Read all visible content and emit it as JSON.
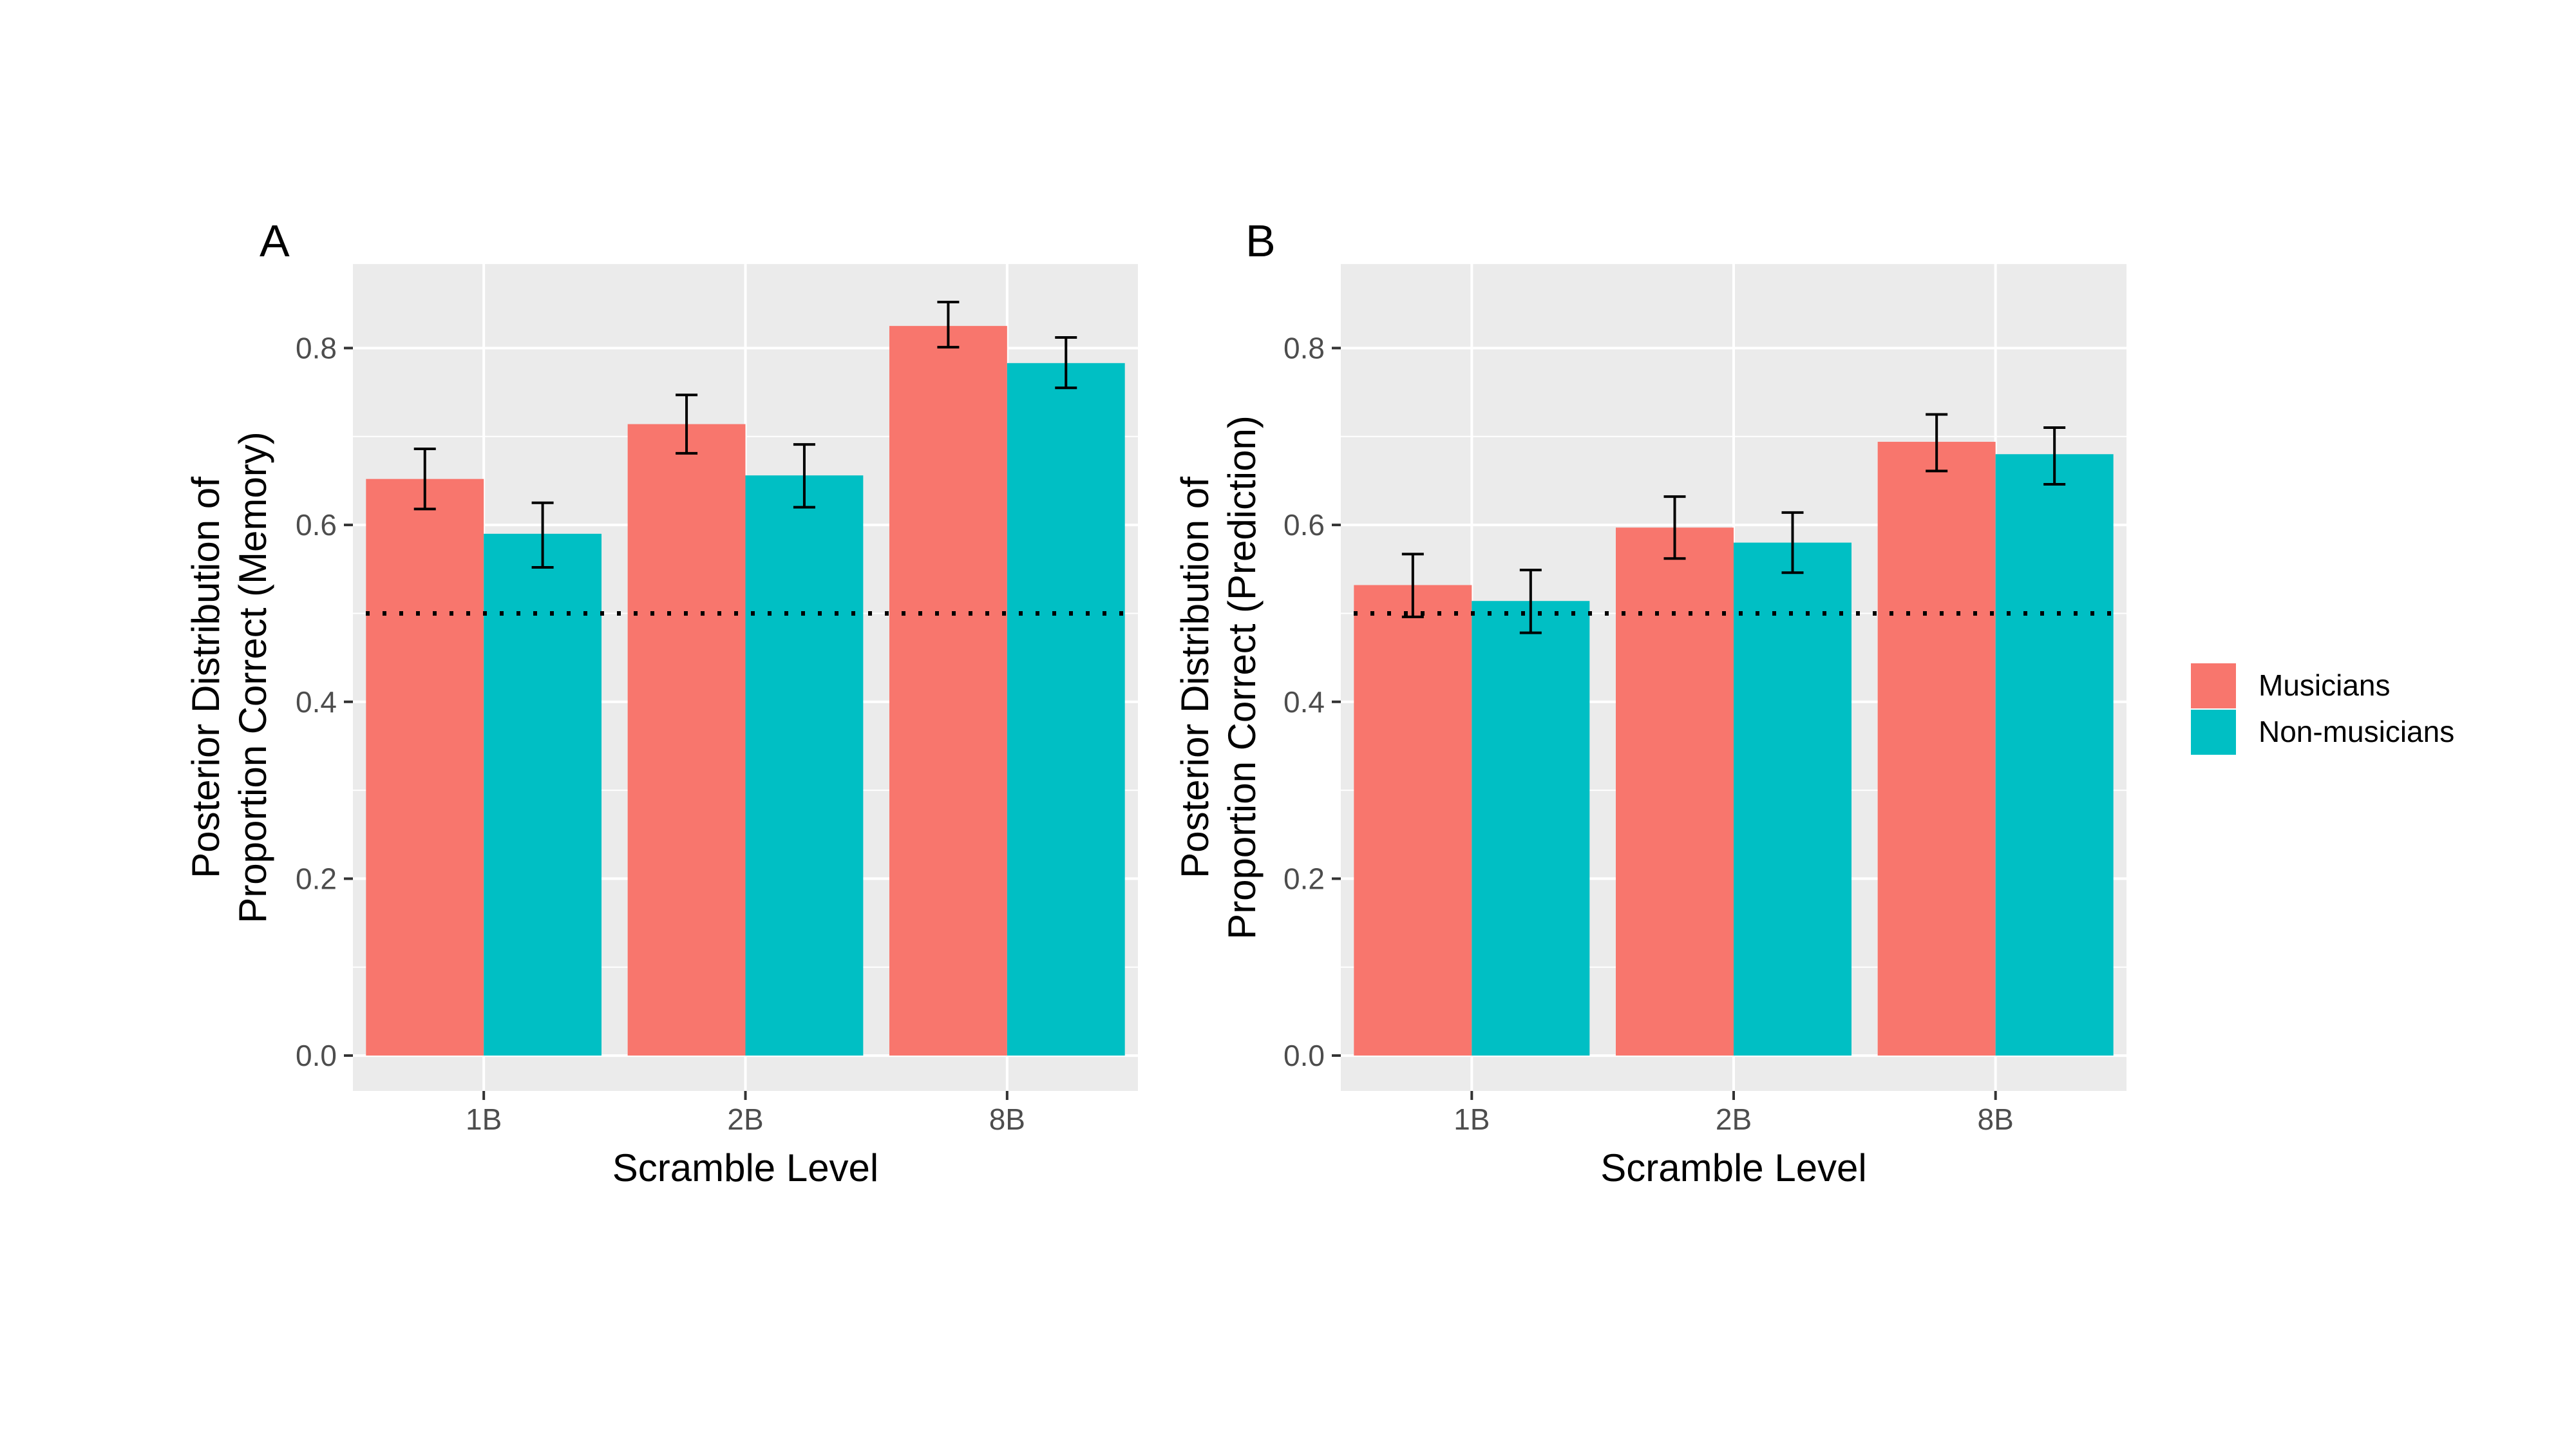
{
  "chart_data": [
    {
      "type": "bar",
      "panel_label": "A",
      "xlabel": "Scramble Level",
      "ylabel_lines": [
        "Posterior Distribution of",
        "Proportion Correct (Memory)"
      ],
      "categories": [
        "1B",
        "2B",
        "8B"
      ],
      "ylim": [
        -0.04,
        0.895
      ],
      "yticks": [
        0.0,
        0.2,
        0.4,
        0.6,
        0.8
      ],
      "ytick_labels": [
        "0.0",
        "0.2",
        "0.4",
        "0.6",
        "0.8"
      ],
      "reference_line": {
        "y": 0.5,
        "style": "dotted",
        "color": "#000000"
      },
      "grid": true,
      "series": [
        {
          "name": "Musicians",
          "color": "#F8766D",
          "values": [
            0.652,
            0.714,
            0.825
          ],
          "err_low": [
            0.618,
            0.681,
            0.801
          ],
          "err_high": [
            0.686,
            0.747,
            0.852
          ]
        },
        {
          "name": "Non-musicians",
          "color": "#00BFC4",
          "values": [
            0.59,
            0.656,
            0.783
          ],
          "err_low": [
            0.552,
            0.62,
            0.755
          ],
          "err_high": [
            0.625,
            0.691,
            0.812
          ]
        }
      ]
    },
    {
      "type": "bar",
      "panel_label": "B",
      "xlabel": "Scramble Level",
      "ylabel_lines": [
        "Posterior Distribution of",
        "Proportion Correct (Prediction)"
      ],
      "categories": [
        "1B",
        "2B",
        "8B"
      ],
      "ylim": [
        -0.04,
        0.895
      ],
      "yticks": [
        0.0,
        0.2,
        0.4,
        0.6,
        0.8
      ],
      "ytick_labels": [
        "0.0",
        "0.2",
        "0.4",
        "0.6",
        "0.8"
      ],
      "reference_line": {
        "y": 0.5,
        "style": "dotted",
        "color": "#000000"
      },
      "grid": true,
      "series": [
        {
          "name": "Musicians",
          "color": "#F8766D",
          "values": [
            0.532,
            0.597,
            0.694
          ],
          "err_low": [
            0.496,
            0.562,
            0.661
          ],
          "err_high": [
            0.567,
            0.632,
            0.725
          ]
        },
        {
          "name": "Non-musicians",
          "color": "#00BFC4",
          "values": [
            0.514,
            0.58,
            0.68
          ],
          "err_low": [
            0.478,
            0.546,
            0.646
          ],
          "err_high": [
            0.549,
            0.614,
            0.71
          ]
        }
      ]
    }
  ],
  "legend": {
    "placement": "right",
    "items": [
      {
        "label": "Musicians",
        "color": "#F8766D"
      },
      {
        "label": "Non-musicians",
        "color": "#00BFC4"
      }
    ]
  },
  "colors": {
    "panel_background": "#EBEBEB",
    "grid": "#FFFFFF",
    "musicians": "#F8766D",
    "non_musicians": "#00BFC4"
  }
}
